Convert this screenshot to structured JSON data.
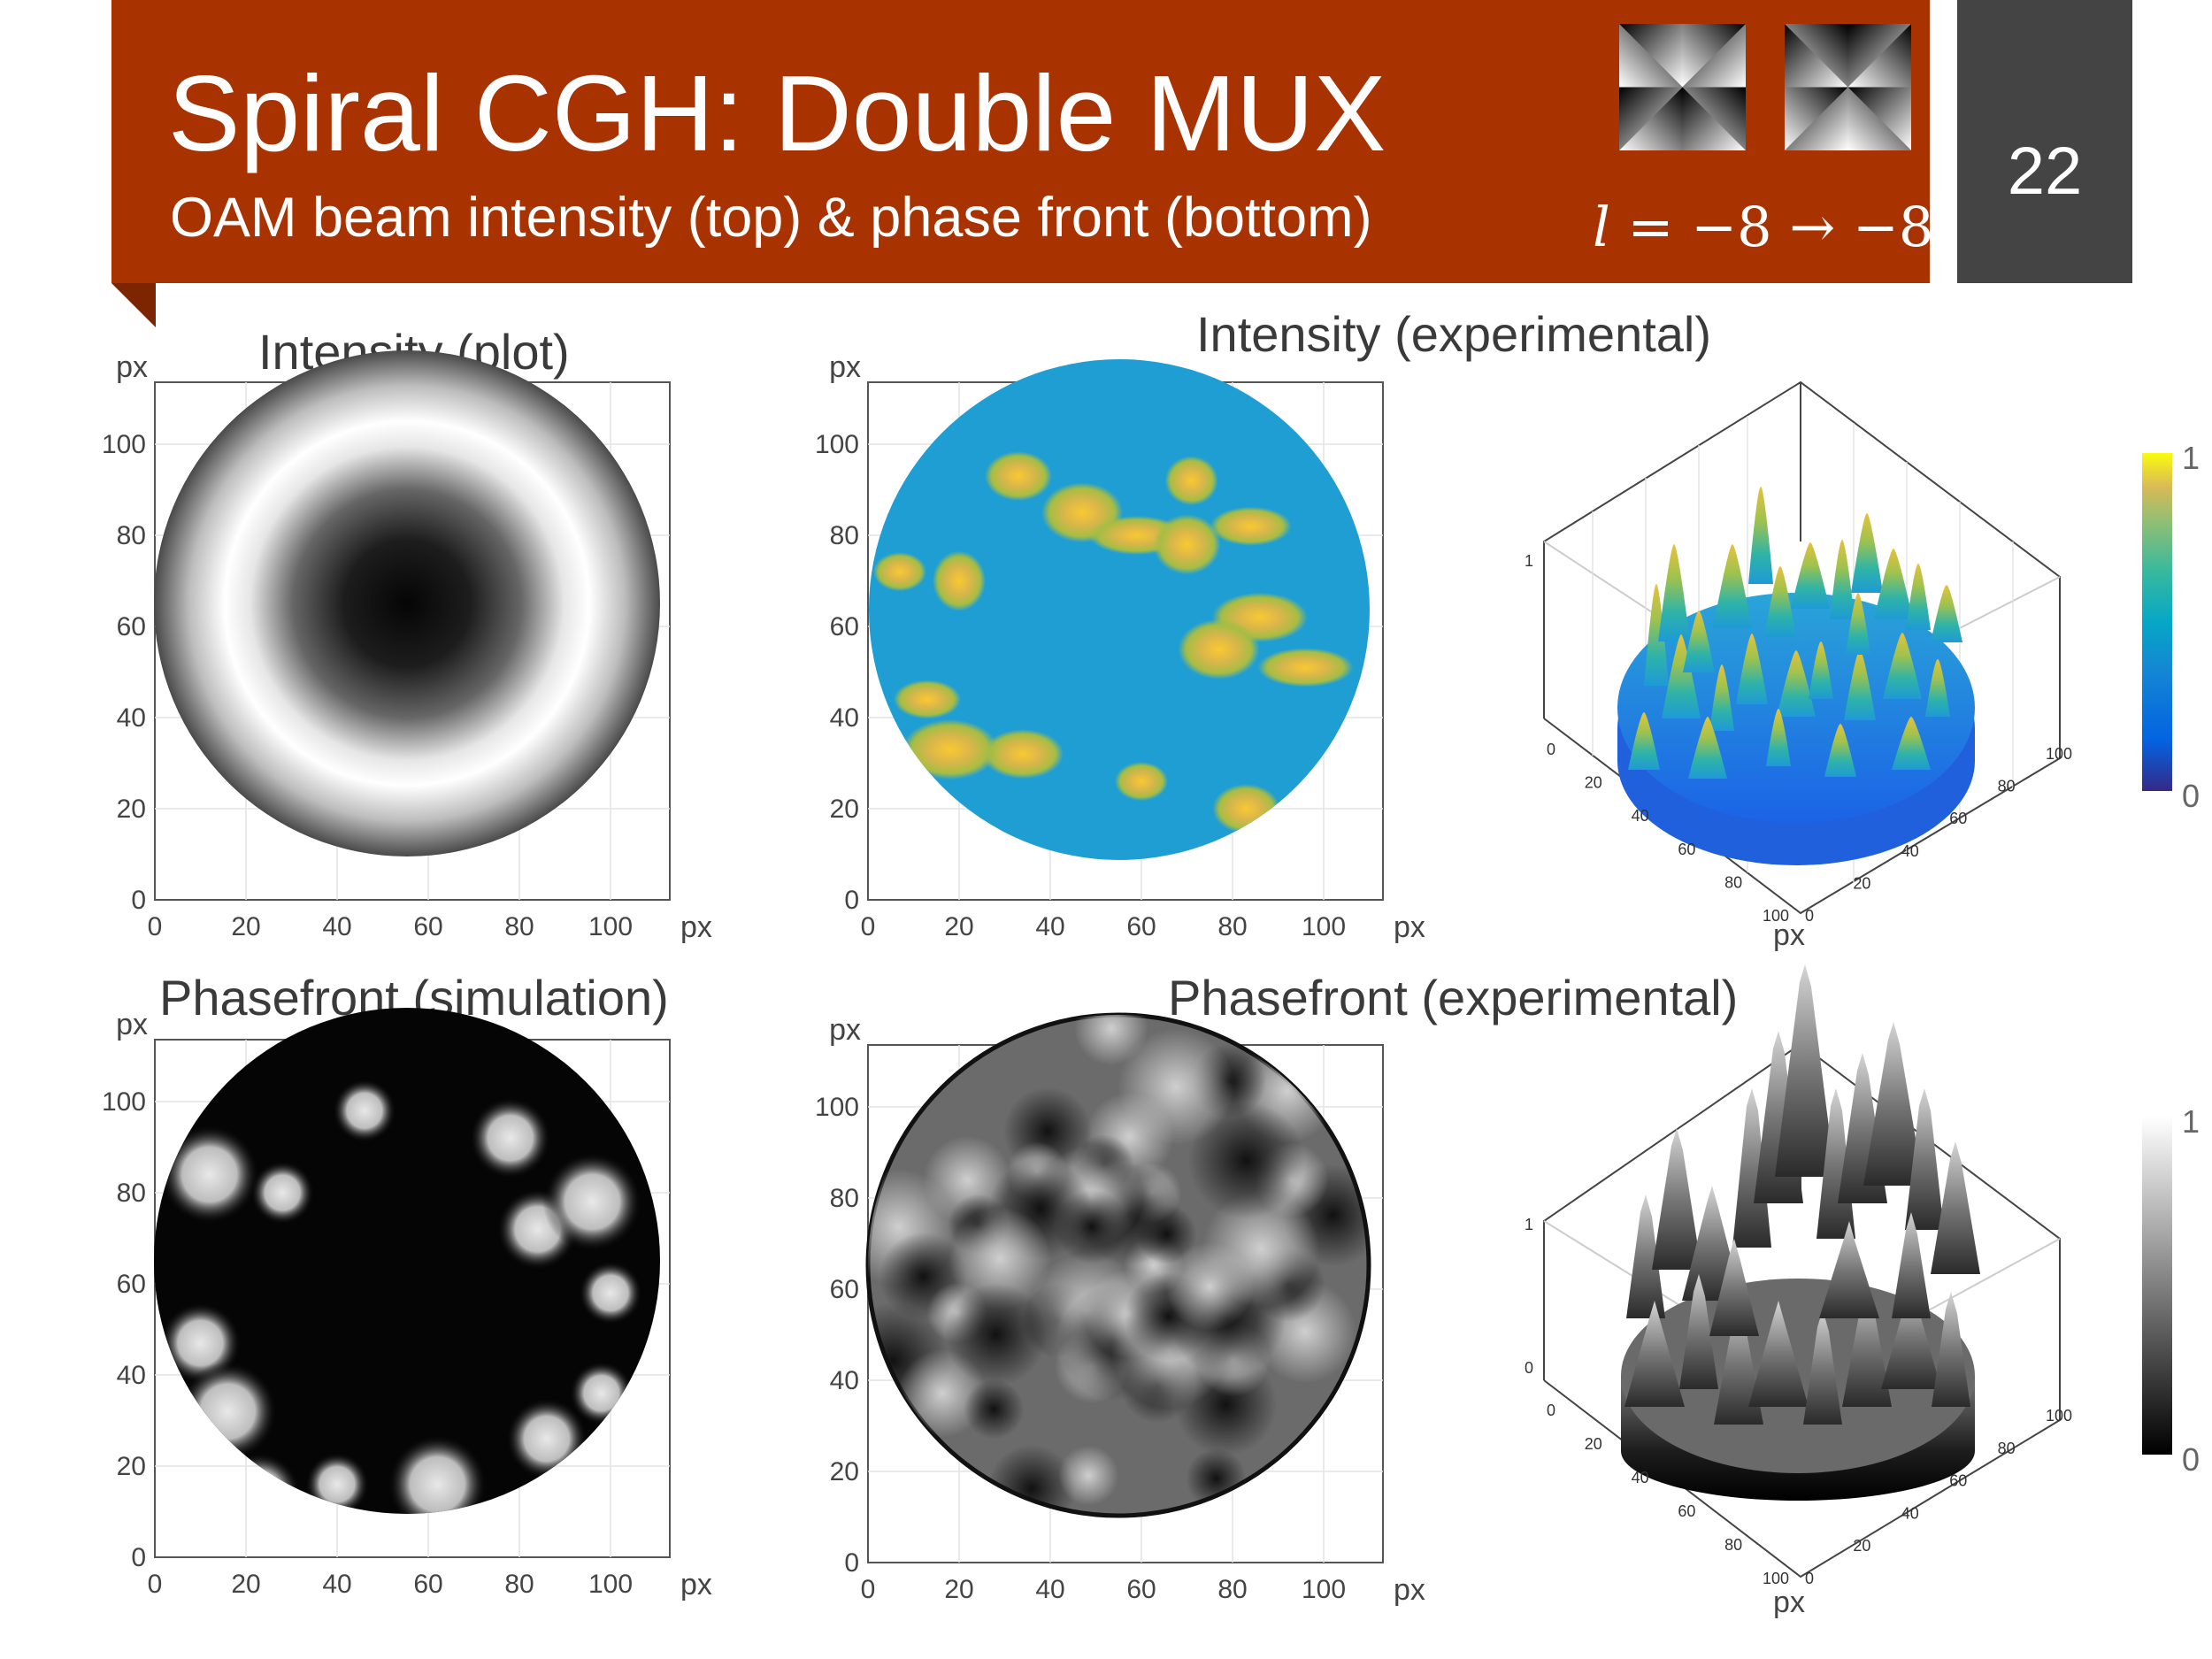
{
  "slide": {
    "title": "Spiral CGH: Double MUX",
    "subtitle": "OAM beam intensity (top) & phase front (bottom)",
    "formula": {
      "var": "l",
      "rest": " = −8 → −8"
    },
    "page_number": "22",
    "colors": {
      "banner": "#a83200",
      "page_box": "#444444",
      "accent_parula_high": "#f9fb0e",
      "accent_parula_low": "#352a87"
    }
  },
  "panels": {
    "intensity_plot_title": "Intensity (plot)",
    "intensity_exp_title": "Intensity (experimental)",
    "phase_sim_title": "Phasefront (simulation)",
    "phase_exp_title": "Phasefront (experimental)"
  },
  "axes": {
    "unit": "px",
    "ticks": [
      "0",
      "20",
      "40",
      "60",
      "80",
      "100"
    ],
    "ticks_3d_xy": [
      "0",
      "20",
      "40",
      "60",
      "80",
      "100"
    ],
    "z_ticks": [
      "0",
      "1"
    ],
    "colorbar_ticks": [
      "0",
      "1"
    ]
  },
  "chart_data": [
    {
      "type": "heatmap",
      "title": "Intensity (plot)",
      "xlabel": "px",
      "ylabel": "px",
      "xlim": [
        0,
        110
      ],
      "ylim": [
        0,
        110
      ],
      "colormap": "gray",
      "description_values": {
        "aperture_center": [
          55,
          55
        ],
        "aperture_radius": 55,
        "dark_core_radius": 25,
        "bright_ring_radius": 40
      }
    },
    {
      "type": "heatmap",
      "title": "Intensity (experimental)",
      "xlabel": "px",
      "ylabel": "px",
      "xlim": [
        0,
        110
      ],
      "ylim": [
        0,
        110
      ],
      "colormap": "parula",
      "hotspots": [
        [
          7,
          72
        ],
        [
          33,
          93
        ],
        [
          47,
          85
        ],
        [
          59,
          80
        ],
        [
          71,
          92
        ],
        [
          70,
          78
        ],
        [
          84,
          82
        ],
        [
          86,
          62
        ],
        [
          20,
          70
        ],
        [
          13,
          44
        ],
        [
          34,
          32
        ],
        [
          18,
          33
        ],
        [
          60,
          26
        ],
        [
          83,
          20
        ],
        [
          77,
          55
        ],
        [
          96,
          51
        ]
      ]
    },
    {
      "type": "surface",
      "title": "Intensity (experimental) 3D",
      "xlim": [
        0,
        100
      ],
      "ylim": [
        0,
        100
      ],
      "zlim": [
        0,
        1
      ],
      "colormap": "parula"
    },
    {
      "type": "heatmap",
      "title": "Phasefront (simulation)",
      "xlabel": "px",
      "ylabel": "px",
      "xlim": [
        0,
        110
      ],
      "ylim": [
        0,
        110
      ],
      "colormap": "gray",
      "bright_blobs": [
        [
          46,
          98
        ],
        [
          78,
          92
        ],
        [
          12,
          84
        ],
        [
          28,
          80
        ],
        [
          84,
          72
        ],
        [
          96,
          78
        ],
        [
          100,
          58
        ],
        [
          10,
          47
        ],
        [
          16,
          32
        ],
        [
          98,
          36
        ],
        [
          86,
          26
        ],
        [
          62,
          16
        ],
        [
          40,
          16
        ],
        [
          23,
          14
        ],
        [
          92,
          10
        ]
      ]
    },
    {
      "type": "heatmap",
      "title": "Phasefront (experimental)",
      "xlabel": "px",
      "ylabel": "px",
      "xlim": [
        0,
        110
      ],
      "ylim": [
        0,
        110
      ],
      "colormap": "gray"
    },
    {
      "type": "surface",
      "title": "Phasefront (experimental) 3D",
      "xlim": [
        0,
        100
      ],
      "ylim": [
        0,
        100
      ],
      "zlim": [
        0,
        1
      ],
      "colormap": "gray"
    }
  ]
}
